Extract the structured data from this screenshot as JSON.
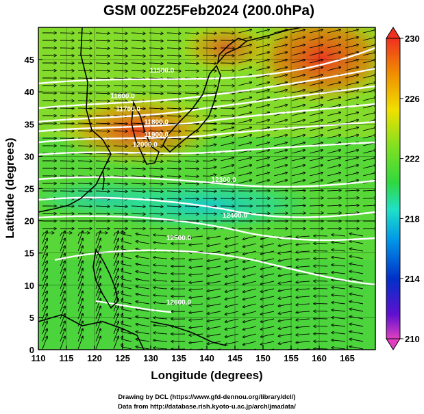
{
  "title": "GSM 00Z25Feb2024 (200.0hPa)",
  "x_axis": {
    "label": "Longitude (degrees)",
    "min": 110,
    "max": 170,
    "ticks": [
      "110",
      "115",
      "120",
      "125",
      "130",
      "135",
      "140",
      "145",
      "150",
      "155",
      "160",
      "165"
    ]
  },
  "y_axis": {
    "label": "Latitude  (degrees)",
    "min": 0,
    "max": 50,
    "ticks": [
      "0",
      "5",
      "10",
      "15",
      "20",
      "25",
      "30",
      "35",
      "40",
      "45"
    ]
  },
  "colorbar": {
    "min": 210,
    "max": 230,
    "ticks": [
      "230",
      "226",
      "222",
      "218",
      "214",
      "210"
    ],
    "colors": [
      "#e040c0",
      "#5000d0",
      "#0020c0",
      "#0090e0",
      "#20e0c0",
      "#30d840",
      "#80e020",
      "#f0e000",
      "#f09000",
      "#f04020"
    ]
  },
  "contour_labels": [
    {
      "text": "11900.0",
      "lon": 131,
      "lat": 33
    },
    {
      "text": "12000.0",
      "lon": 129,
      "lat": 31.5
    },
    {
      "text": "11800.0",
      "lon": 131,
      "lat": 35
    },
    {
      "text": "11700.0",
      "lon": 126,
      "lat": 37
    },
    {
      "text": "11600.0",
      "lon": 125,
      "lat": 39
    },
    {
      "text": "11500.0",
      "lon": 132,
      "lat": 43
    },
    {
      "text": "12300.0",
      "lon": 143,
      "lat": 26
    },
    {
      "text": "12400.0",
      "lon": 145,
      "lat": 20.5
    },
    {
      "text": "12500.0",
      "lon": 135,
      "lat": 17
    },
    {
      "text": "12600.0",
      "lon": 135,
      "lat": 7
    }
  ],
  "credits": [
    "Drawing by DCL (https://www.gfd-dennou.org/library/dcl/)",
    "Data from http://database.rish.kyoto-u.ac.jp/arch/jmadata/"
  ]
}
